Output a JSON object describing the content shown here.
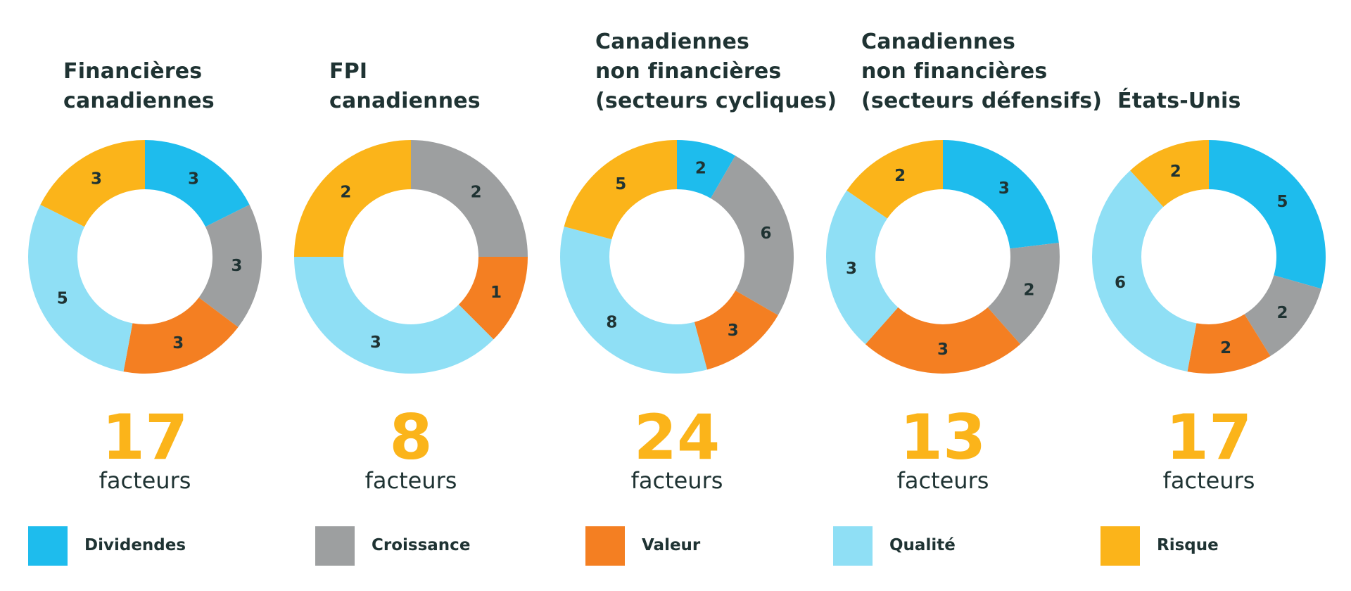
{
  "colors": {
    "Dividendes": "#1ebced",
    "Croissance": "#9d9fa0",
    "Valeur": "#f47f22",
    "Qualité": "#8fdff5",
    "Risque": "#fbb41a"
  },
  "legend": [
    "Dividendes",
    "Croissance",
    "Valeur",
    "Qualité",
    "Risque"
  ],
  "chart_data": [
    {
      "type": "donut",
      "title_lines": [
        "Financières",
        "canadiennes"
      ],
      "total": "17",
      "unit": "facteurs",
      "slices": [
        {
          "category": "Dividendes",
          "value": 3
        },
        {
          "category": "Croissance",
          "value": 3
        },
        {
          "category": "Valeur",
          "value": 3
        },
        {
          "category": "Qualité",
          "value": 5
        },
        {
          "category": "Risque",
          "value": 3
        }
      ]
    },
    {
      "type": "donut",
      "title_lines": [
        "FPI",
        "canadiennes"
      ],
      "total": "8",
      "unit": "facteurs",
      "slices": [
        {
          "category": "Croissance",
          "value": 2
        },
        {
          "category": "Valeur",
          "value": 1
        },
        {
          "category": "Qualité",
          "value": 3
        },
        {
          "category": "Risque",
          "value": 2
        }
      ]
    },
    {
      "type": "donut",
      "title_lines": [
        "Canadiennes",
        "non financières",
        "(secteurs cycliques)"
      ],
      "total": "24",
      "unit": "facteurs",
      "slices": [
        {
          "category": "Dividendes",
          "value": 2
        },
        {
          "category": "Croissance",
          "value": 6
        },
        {
          "category": "Valeur",
          "value": 3
        },
        {
          "category": "Qualité",
          "value": 8
        },
        {
          "category": "Risque",
          "value": 5
        }
      ]
    },
    {
      "type": "donut",
      "title_lines": [
        "Canadiennes",
        "non financières",
        "(secteurs défensifs)"
      ],
      "total": "13",
      "unit": "facteurs",
      "slices": [
        {
          "category": "Dividendes",
          "value": 3
        },
        {
          "category": "Croissance",
          "value": 2
        },
        {
          "category": "Valeur",
          "value": 3
        },
        {
          "category": "Qualité",
          "value": 3
        },
        {
          "category": "Risque",
          "value": 2
        }
      ]
    },
    {
      "type": "donut",
      "title_lines": [
        "États-Unis"
      ],
      "total": "17",
      "unit": "facteurs",
      "slices": [
        {
          "category": "Dividendes",
          "value": 5
        },
        {
          "category": "Croissance",
          "value": 2
        },
        {
          "category": "Valeur",
          "value": 2
        },
        {
          "category": "Qualité",
          "value": 6
        },
        {
          "category": "Risque",
          "value": 2
        }
      ]
    }
  ]
}
